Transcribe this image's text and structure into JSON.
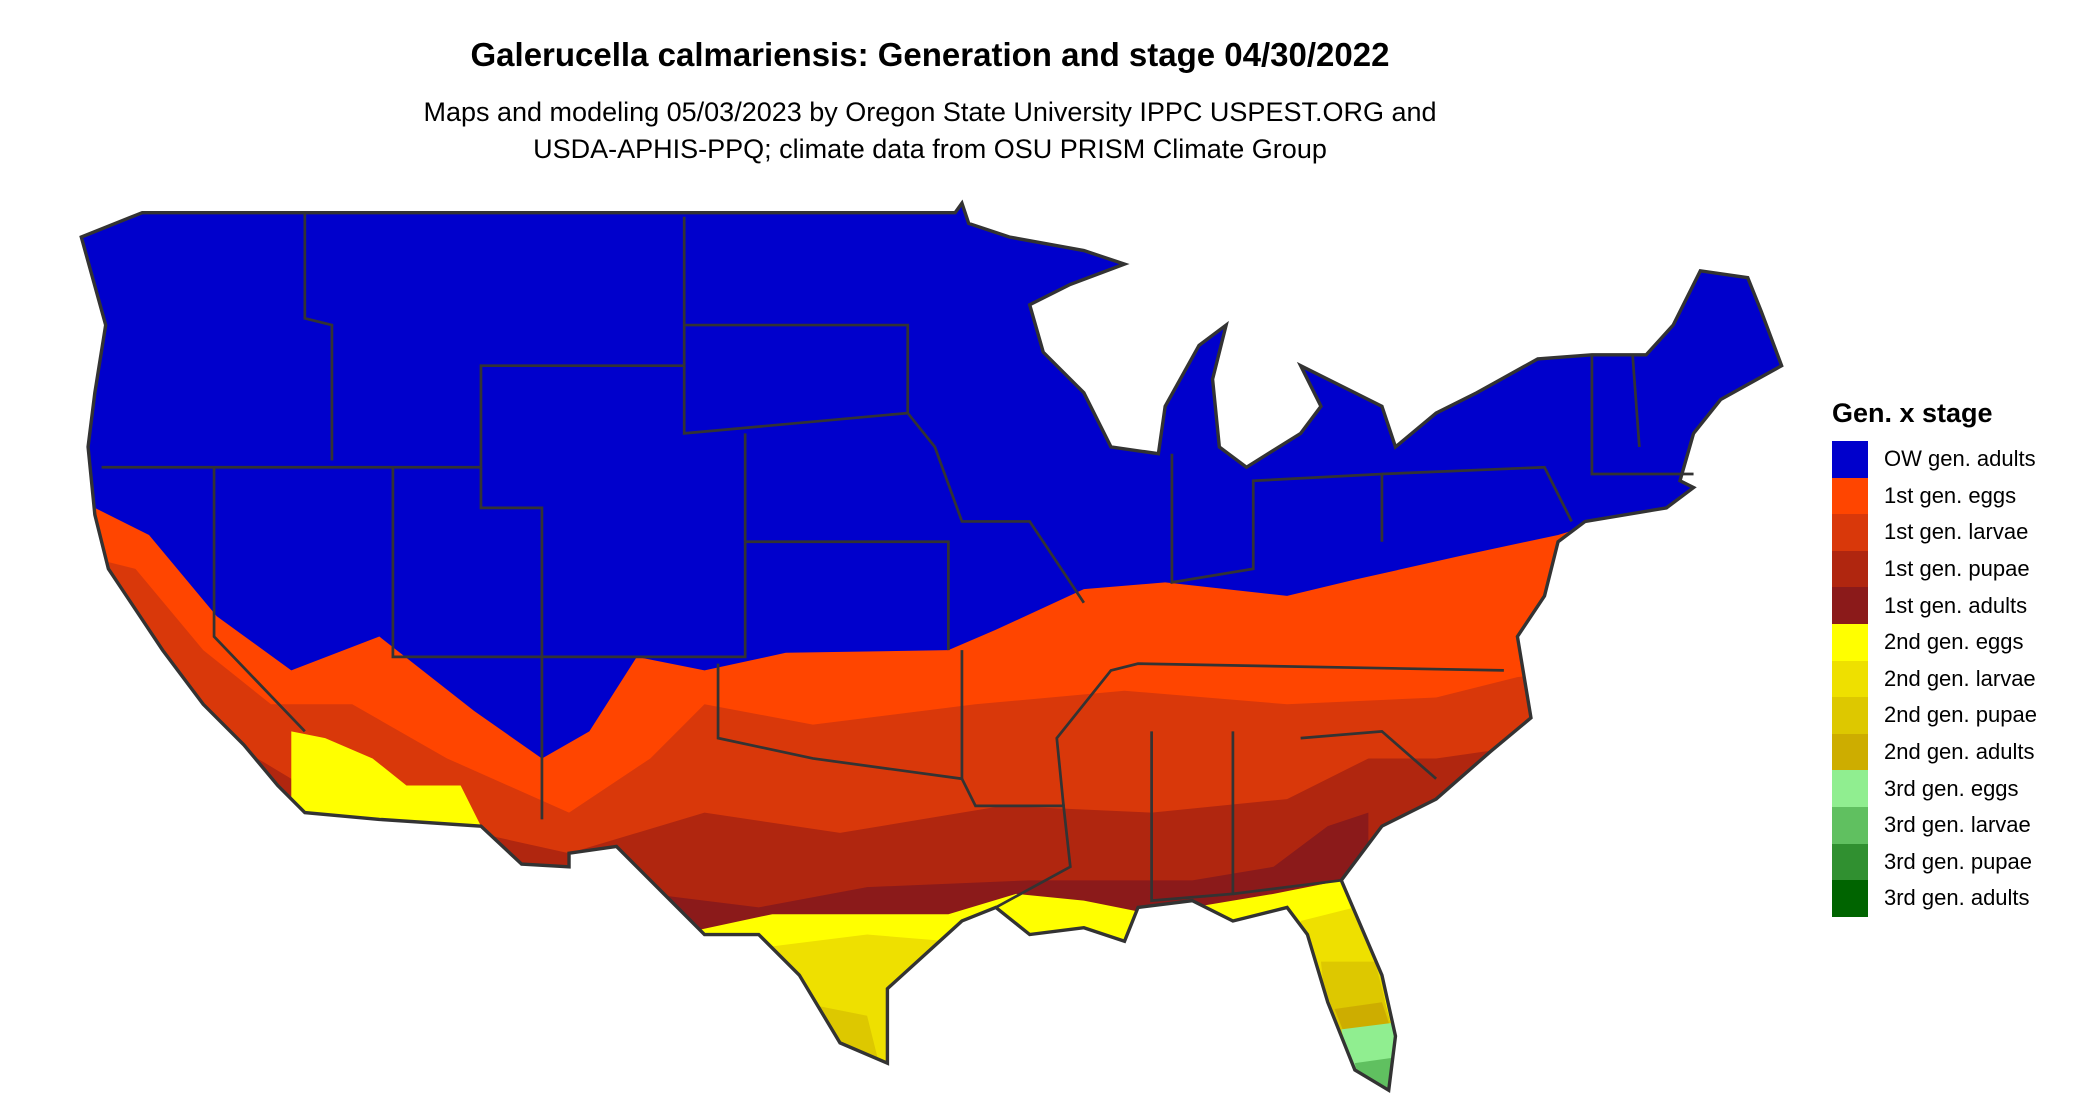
{
  "title": "Galerucella calmariensis: Generation and stage 04/30/2022",
  "subtitle": {
    "line1": "Maps and modeling 05/03/2023 by Oregon State University IPPC USPEST.ORG and",
    "line2": "USDA-APHIS-PPQ; climate data from OSU PRISM Climate Group"
  },
  "map": {
    "region": "Contiguous United States",
    "border_color": "#333333"
  },
  "legend": {
    "title": "Gen. x stage",
    "items": [
      {
        "label": "OW gen. adults",
        "color": "#0000CC"
      },
      {
        "label": "1st gen. eggs",
        "color": "#FF4500"
      },
      {
        "label": "1st gen. larvae",
        "color": "#D9380A"
      },
      {
        "label": "1st gen. pupae",
        "color": "#B0260F"
      },
      {
        "label": "1st gen. adults",
        "color": "#8B1A1A"
      },
      {
        "label": "2nd gen. eggs",
        "color": "#FFFF00"
      },
      {
        "label": "2nd gen. larvae",
        "color": "#EEE000"
      },
      {
        "label": "2nd gen. pupae",
        "color": "#DDC800"
      },
      {
        "label": "2nd gen. adults",
        "color": "#CDAD00"
      },
      {
        "label": "3rd gen. eggs",
        "color": "#90EE90"
      },
      {
        "label": "3rd gen. larvae",
        "color": "#60C060"
      },
      {
        "label": "3rd gen. pupae",
        "color": "#309030"
      },
      {
        "label": "3rd gen. adults",
        "color": "#006400"
      }
    ]
  }
}
